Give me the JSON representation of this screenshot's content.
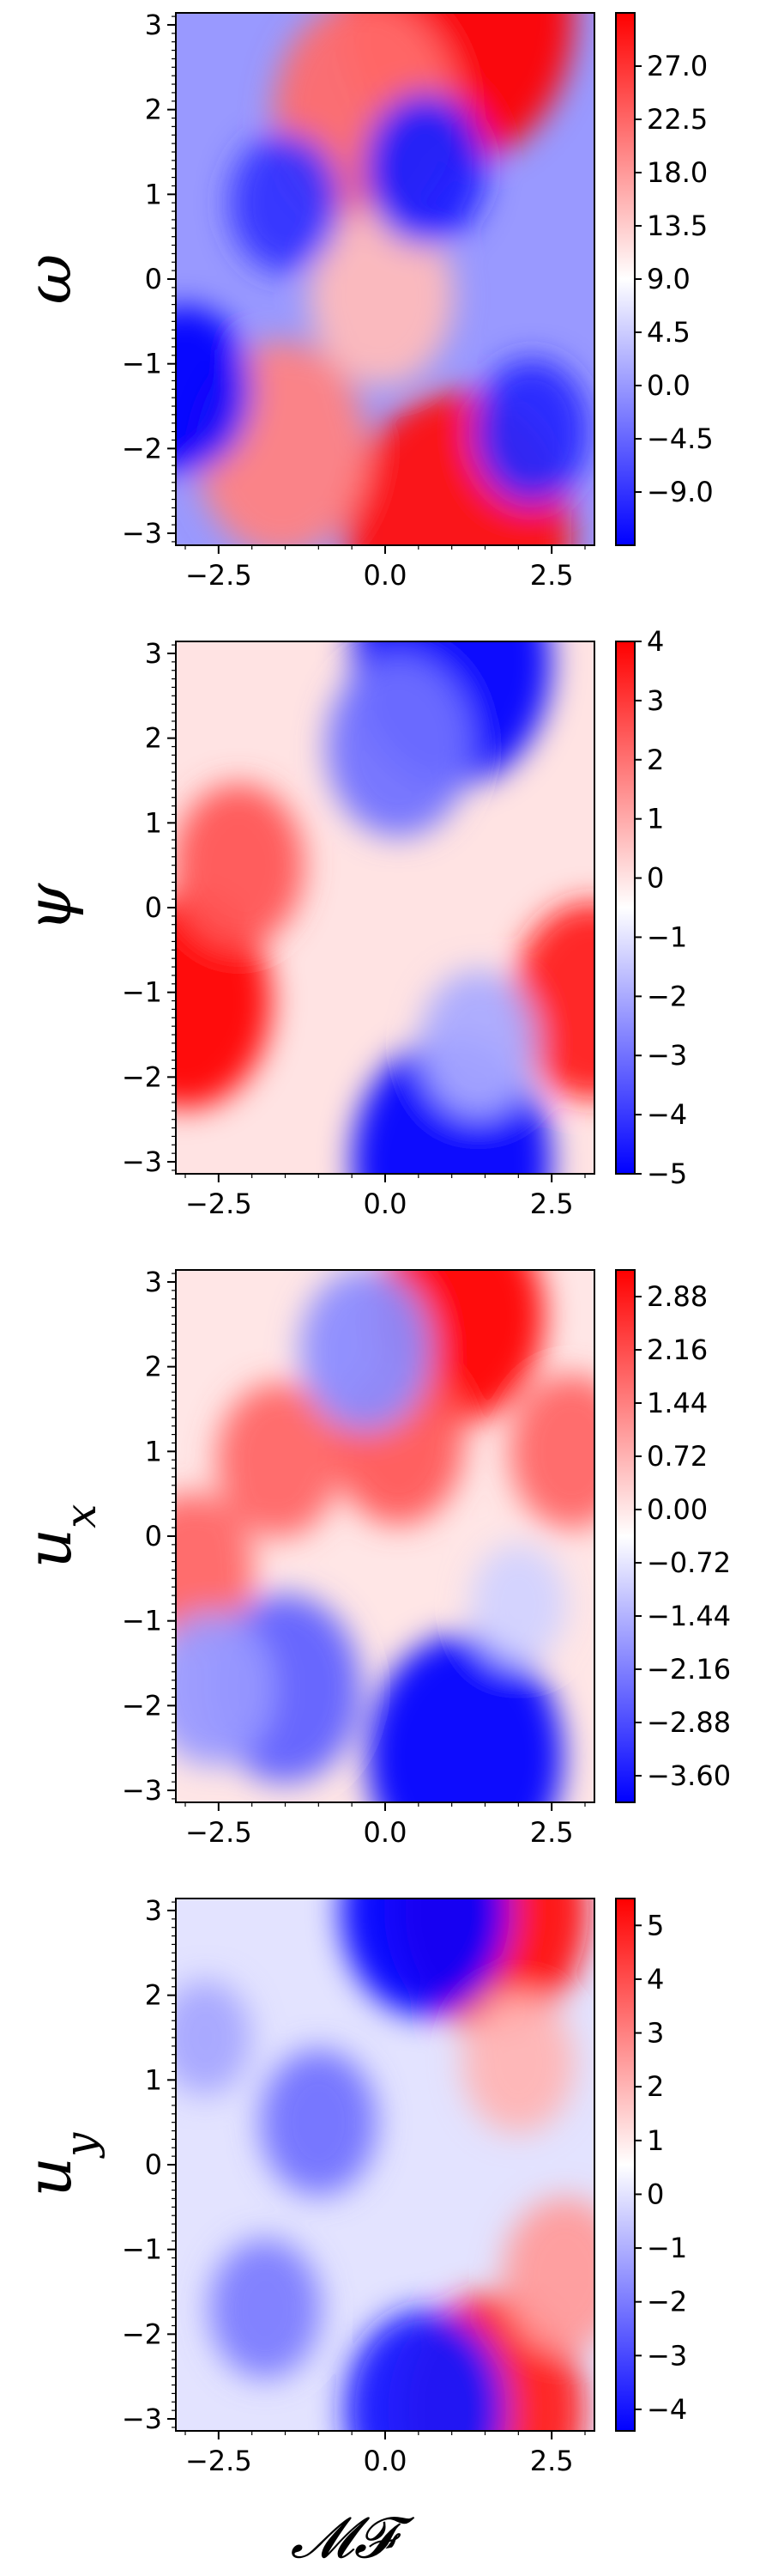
{
  "figure": {
    "xlabel": "𝓜𝓕"
  },
  "chart_data": [
    {
      "type": "heatmap",
      "field": "omega",
      "ylabel": "ω",
      "xlim": [
        -3.14159,
        3.14159
      ],
      "ylim": [
        -3.14159,
        3.14159
      ],
      "x_ticks": [
        "−2.5",
        "0.0",
        "2.5"
      ],
      "y_ticks": [
        "−3",
        "−2",
        "−1",
        "0",
        "1",
        "2",
        "3"
      ],
      "colormap": "bwr",
      "colors": {
        "low": "#0000ff",
        "mid": "#ffffff",
        "high": "#ff0000"
      },
      "clim": [
        -13.5,
        31.5
      ],
      "colorbar_ticks": [
        "−9.0",
        "−4.5",
        "0.0",
        "4.5",
        "9.0",
        "13.5",
        "18.0",
        "22.5",
        "27.0"
      ],
      "features": [
        {
          "x": 1.1,
          "y": 3.1,
          "value": 31
        },
        {
          "x": 1.1,
          "y": -3.0,
          "value": 30
        },
        {
          "x": -0.3,
          "y": 1.95,
          "value": 22
        },
        {
          "x": -1.55,
          "y": -2.0,
          "value": 20
        },
        {
          "x": -0.05,
          "y": -0.2,
          "value": 15
        },
        {
          "x": -3.0,
          "y": -1.3,
          "value": -13
        },
        {
          "x": 0.6,
          "y": 1.3,
          "value": -11
        },
        {
          "x": 2.2,
          "y": -1.8,
          "value": -10
        },
        {
          "x": -1.5,
          "y": 0.9,
          "value": -9
        }
      ]
    },
    {
      "type": "heatmap",
      "field": "psi",
      "ylabel": "ψ",
      "xlim": [
        -3.14159,
        3.14159
      ],
      "ylim": [
        -3.14159,
        3.14159
      ],
      "x_ticks": [
        "−2.5",
        "0.0",
        "2.5"
      ],
      "y_ticks": [
        "−3",
        "−2",
        "−1",
        "0",
        "1",
        "2",
        "3"
      ],
      "colormap": "bwr",
      "colors": {
        "low": "#0000ff",
        "mid": "#ffffff",
        "high": "#ff0000"
      },
      "clim": [
        -5,
        4
      ],
      "colorbar_ticks": [
        "−5",
        "−4",
        "−3",
        "−2",
        "−1",
        "0",
        "1",
        "2",
        "3",
        "4"
      ],
      "features": [
        {
          "x": -3.0,
          "y": -1.1,
          "value": 4
        },
        {
          "x": 3.1,
          "y": -1.1,
          "value": 3.5
        },
        {
          "x": -2.2,
          "y": 0.5,
          "value": 2.5
        },
        {
          "x": 1.0,
          "y": 2.9,
          "value": -5
        },
        {
          "x": 1.0,
          "y": -3.0,
          "value": -5
        },
        {
          "x": 0.2,
          "y": 1.9,
          "value": -3
        },
        {
          "x": 1.4,
          "y": -1.6,
          "value": -2
        }
      ]
    },
    {
      "type": "heatmap",
      "field": "u_x",
      "ylabel": "u_x",
      "xlim": [
        -3.14159,
        3.14159
      ],
      "ylim": [
        -3.14159,
        3.14159
      ],
      "x_ticks": [
        "−2.5",
        "0.0",
        "2.5"
      ],
      "y_ticks": [
        "−3",
        "−2",
        "−1",
        "0",
        "1",
        "2",
        "3"
      ],
      "colormap": "bwr",
      "colors": {
        "low": "#0000ff",
        "mid": "#ffffff",
        "high": "#ff0000"
      },
      "clim": [
        -3.96,
        3.24
      ],
      "colorbar_ticks": [
        "−3.60",
        "−2.88",
        "−2.16",
        "−1.44",
        "−0.72",
        "0.00",
        "0.72",
        "1.44",
        "2.16",
        "2.88"
      ],
      "features": [
        {
          "x": 1.1,
          "y": 2.6,
          "value": 3.2
        },
        {
          "x": 0.2,
          "y": 1.1,
          "value": 2.0
        },
        {
          "x": -1.6,
          "y": 0.9,
          "value": 1.8
        },
        {
          "x": 2.8,
          "y": 1.0,
          "value": 1.8
        },
        {
          "x": -2.9,
          "y": -0.4,
          "value": 1.8
        },
        {
          "x": 1.2,
          "y": -2.6,
          "value": -3.9
        },
        {
          "x": -1.5,
          "y": -1.8,
          "value": -2.6
        },
        {
          "x": -0.3,
          "y": 2.2,
          "value": -2.0
        },
        {
          "x": -2.6,
          "y": -1.8,
          "value": -1.8
        },
        {
          "x": 2.0,
          "y": -0.8,
          "value": -1.0
        }
      ]
    },
    {
      "type": "heatmap",
      "field": "u_y",
      "ylabel": "u_y",
      "xlim": [
        -3.14159,
        3.14159
      ],
      "ylim": [
        -3.14159,
        3.14159
      ],
      "x_ticks": [
        "−2.5",
        "0.0",
        "2.5"
      ],
      "y_ticks": [
        "−3",
        "−2",
        "−1",
        "0",
        "1",
        "2",
        "3"
      ],
      "colormap": "bwr",
      "colors": {
        "low": "#0000ff",
        "mid": "#ffffff",
        "high": "#ff0000"
      },
      "clim": [
        -4.4,
        5.5
      ],
      "colorbar_ticks": [
        "−4",
        "−3",
        "−2",
        "−1",
        "0",
        "1",
        "2",
        "3",
        "4",
        "5"
      ],
      "features": [
        {
          "x": 1.6,
          "y": 3.0,
          "value": 5.3
        },
        {
          "x": 1.6,
          "y": -2.9,
          "value": 5.0
        },
        {
          "x": 2.7,
          "y": -1.3,
          "value": 2.5
        },
        {
          "x": 2.0,
          "y": 1.2,
          "value": 2.0
        },
        {
          "x": 0.6,
          "y": 3.0,
          "value": -4.3
        },
        {
          "x": 0.6,
          "y": -2.9,
          "value": -4.0
        },
        {
          "x": -1.0,
          "y": 0.5,
          "value": -2.2
        },
        {
          "x": -1.8,
          "y": -1.7,
          "value": -2.0
        },
        {
          "x": -2.7,
          "y": 1.5,
          "value": -1.2
        }
      ]
    }
  ]
}
